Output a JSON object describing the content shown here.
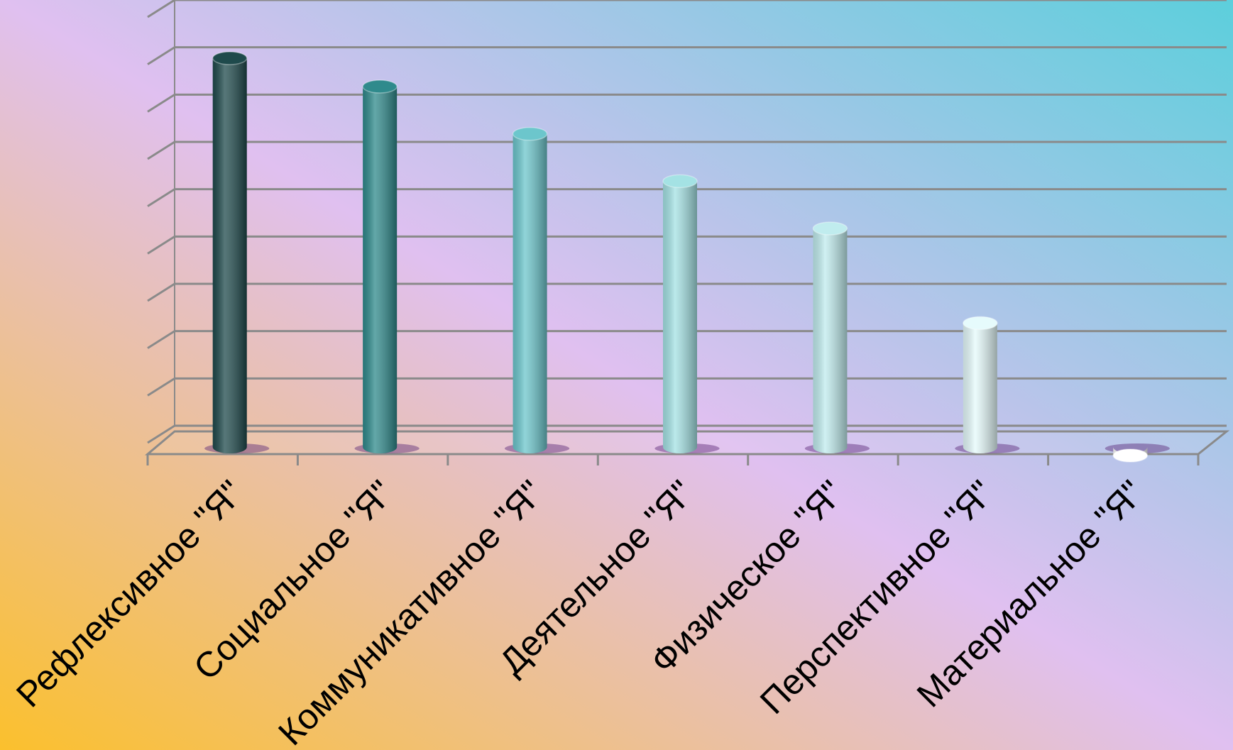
{
  "chart_data": {
    "type": "bar",
    "title": "",
    "xlabel": "",
    "ylabel": "",
    "categories": [
      "Рефлексивное \"Я\"",
      "Социальное \"Я\"",
      "Коммуникативное \"Я\"",
      "Деятельное \"Я\"",
      "Физическое \"Я\"",
      "Перспективное \"Я\"",
      "Материальное \"Я\""
    ],
    "values": [
      8.7,
      8.1,
      7.1,
      6.1,
      5.1,
      3.1,
      0.3
    ],
    "ylim": [
      0,
      9
    ],
    "grid": true,
    "legend": "none",
    "bar_style": "cylinder",
    "colors": [
      "#1f4a4c",
      "#2f8a8c",
      "#6cc6cc",
      "#a4e2e4",
      "#c0ecee",
      "#e6fbfc",
      "#ffffff"
    ],
    "background_gradient": [
      "#fbc02d",
      "#e0c0f0",
      "#5ccfdc"
    ]
  }
}
